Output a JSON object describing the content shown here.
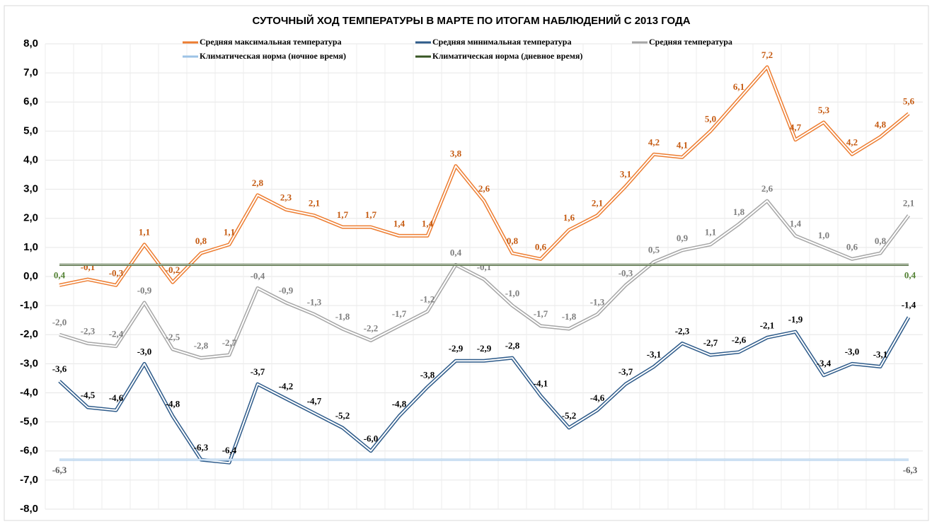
{
  "chart_data": {
    "type": "line",
    "title": "СУТОЧНЫЙ ХОД ТЕМПЕРАТУРЫ В МАРТЕ ПО ИТОГАМ НАБЛЮДЕНИЙ С 2013 ГОДА",
    "categories": [
      null,
      null,
      null,
      null,
      null,
      null,
      null,
      null,
      null,
      null,
      null,
      null,
      null,
      null,
      null,
      null,
      null,
      null,
      null,
      null,
      null,
      null,
      null,
      null,
      null,
      null,
      null,
      null,
      null,
      null,
      null
    ],
    "series": [
      {
        "name": "Средняя максимальная температура",
        "color": "#ed7d31",
        "label_color": "#c55a11",
        "values": [
          -0.3,
          -0.1,
          -0.3,
          1.1,
          -0.2,
          0.8,
          1.1,
          2.8,
          2.3,
          2.1,
          1.7,
          1.7,
          1.4,
          1.4,
          3.8,
          2.6,
          0.8,
          0.6,
          1.6,
          2.1,
          3.1,
          4.2,
          4.1,
          5.0,
          6.1,
          7.2,
          4.7,
          5.3,
          4.2,
          4.8,
          5.6
        ],
        "value_labels": [
          null,
          "-0,1",
          "-0,3",
          "1,1",
          "-0,2",
          "0,8",
          "1,1",
          "2,8",
          "2,3",
          "2,1",
          "1,7",
          "1,7",
          "1,4",
          "1,4",
          "3,8",
          "2,6",
          "0,8",
          "0,6",
          "1,6",
          "2,1",
          "3,1",
          "4,2",
          "4,1",
          "5,0",
          "6,1",
          "7,2",
          "4,7",
          "5,3",
          "4,2",
          "4,8",
          "5,6"
        ]
      },
      {
        "name": "Средняя минимальная температура",
        "color": "#2e5b8a",
        "label_color": "#000000",
        "values": [
          -3.6,
          -4.5,
          -4.6,
          -3.0,
          -4.8,
          -6.3,
          -6.4,
          -3.7,
          -4.2,
          -4.7,
          -5.2,
          -6.0,
          -4.8,
          -3.8,
          -2.9,
          -2.9,
          -2.8,
          -4.1,
          -5.2,
          -4.6,
          -3.7,
          -3.1,
          -2.3,
          -2.7,
          -2.6,
          -2.1,
          -1.9,
          -3.4,
          -3.0,
          -3.1,
          -1.4
        ],
        "value_labels": [
          "-3,6",
          "-4,5",
          "-4,6",
          "-3,0",
          "-4,8",
          "-6,3",
          "-6,4",
          "-3,7",
          "-4,2",
          "-4,7",
          "-5,2",
          "-6,0",
          "-4,8",
          "-3,8",
          "-2,9",
          "-2,9",
          "-2,8",
          "-4,1",
          "-5,2",
          "-4,6",
          "-3,7",
          "-3,1",
          "-2,3",
          "-2,7",
          "-2,6",
          "-2,1",
          "-1,9",
          "-3,4",
          "-3,0",
          "-3,1",
          "-1,4"
        ]
      },
      {
        "name": "Средняя температура",
        "color": "#a6a6a6",
        "label_color": "#7f7f7f",
        "values": [
          -2.0,
          -2.3,
          -2.4,
          -0.9,
          -2.5,
          -2.8,
          -2.7,
          -0.4,
          -0.9,
          -1.3,
          -1.8,
          -2.2,
          -1.7,
          -1.2,
          0.4,
          -0.1,
          -1.0,
          -1.7,
          -1.8,
          -1.3,
          -0.3,
          0.5,
          0.9,
          1.1,
          1.8,
          2.6,
          1.4,
          1.0,
          0.6,
          0.8,
          2.1
        ],
        "value_labels": [
          "-2,0",
          "-2,3",
          "-2,4",
          "-0,9",
          "-2,5",
          "-2,8",
          "-2,7",
          "-0,4",
          "-0,9",
          "-1,3",
          "-1,8",
          "-2,2",
          "-1,7",
          "-1,2",
          "0,4",
          "-0,1",
          "-1,0",
          "-1,7",
          "-1,8",
          "-1,3",
          "-0,3",
          "0,5",
          "0,9",
          "1,1",
          "1,8",
          "2,6",
          "1,4",
          "1,0",
          "0,6",
          "0,8",
          "2,1"
        ]
      },
      {
        "name": "Климатическая норма (ночное время)",
        "color": "#9dc3e6",
        "label_color": "#595959",
        "values": [
          -6.3,
          -6.3,
          -6.3,
          -6.3,
          -6.3,
          -6.3,
          -6.3,
          -6.3,
          -6.3,
          -6.3,
          -6.3,
          -6.3,
          -6.3,
          -6.3,
          -6.3,
          -6.3,
          -6.3,
          -6.3,
          -6.3,
          -6.3,
          -6.3,
          -6.3,
          -6.3,
          -6.3,
          -6.3,
          -6.3,
          -6.3,
          -6.3,
          -6.3,
          -6.3,
          -6.3
        ],
        "value_labels": [
          "-6,3",
          null,
          null,
          null,
          null,
          null,
          null,
          null,
          null,
          null,
          null,
          null,
          null,
          null,
          null,
          null,
          null,
          null,
          null,
          null,
          null,
          null,
          null,
          null,
          null,
          null,
          null,
          null,
          null,
          null,
          "-6,3"
        ]
      },
      {
        "name": "Климатическая норма (дневное время)",
        "color": "#375623",
        "label_color": "#548235",
        "values": [
          0.4,
          0.4,
          0.4,
          0.4,
          0.4,
          0.4,
          0.4,
          0.4,
          0.4,
          0.4,
          0.4,
          0.4,
          0.4,
          0.4,
          0.4,
          0.4,
          0.4,
          0.4,
          0.4,
          0.4,
          0.4,
          0.4,
          0.4,
          0.4,
          0.4,
          0.4,
          0.4,
          0.4,
          0.4,
          0.4,
          0.4
        ],
        "value_labels": [
          "0,4",
          null,
          null,
          null,
          null,
          null,
          null,
          null,
          null,
          null,
          null,
          null,
          null,
          null,
          null,
          null,
          null,
          null,
          null,
          null,
          null,
          null,
          null,
          null,
          null,
          null,
          null,
          null,
          null,
          null,
          "0,4"
        ]
      }
    ],
    "ylim": [
      -8,
      8
    ],
    "yticks": [
      {
        "value": -8,
        "label": "-8,0"
      },
      {
        "value": -7,
        "label": "-7,0"
      },
      {
        "value": -6,
        "label": "-6,0"
      },
      {
        "value": -5,
        "label": "-5,0"
      },
      {
        "value": -4,
        "label": "-4,0"
      },
      {
        "value": -3,
        "label": "-3,0"
      },
      {
        "value": -2,
        "label": "-2,0"
      },
      {
        "value": -1,
        "label": "-1,0"
      },
      {
        "value": 0,
        "label": "0,0"
      },
      {
        "value": 1,
        "label": "1,0"
      },
      {
        "value": 2,
        "label": "2,0"
      },
      {
        "value": 3,
        "label": "3,0"
      },
      {
        "value": 4,
        "label": "4,0"
      },
      {
        "value": 5,
        "label": "5,0"
      },
      {
        "value": 6,
        "label": "6,0"
      },
      {
        "value": 7,
        "label": "7,0"
      },
      {
        "value": 8,
        "label": "8,0"
      }
    ],
    "grid": true
  }
}
